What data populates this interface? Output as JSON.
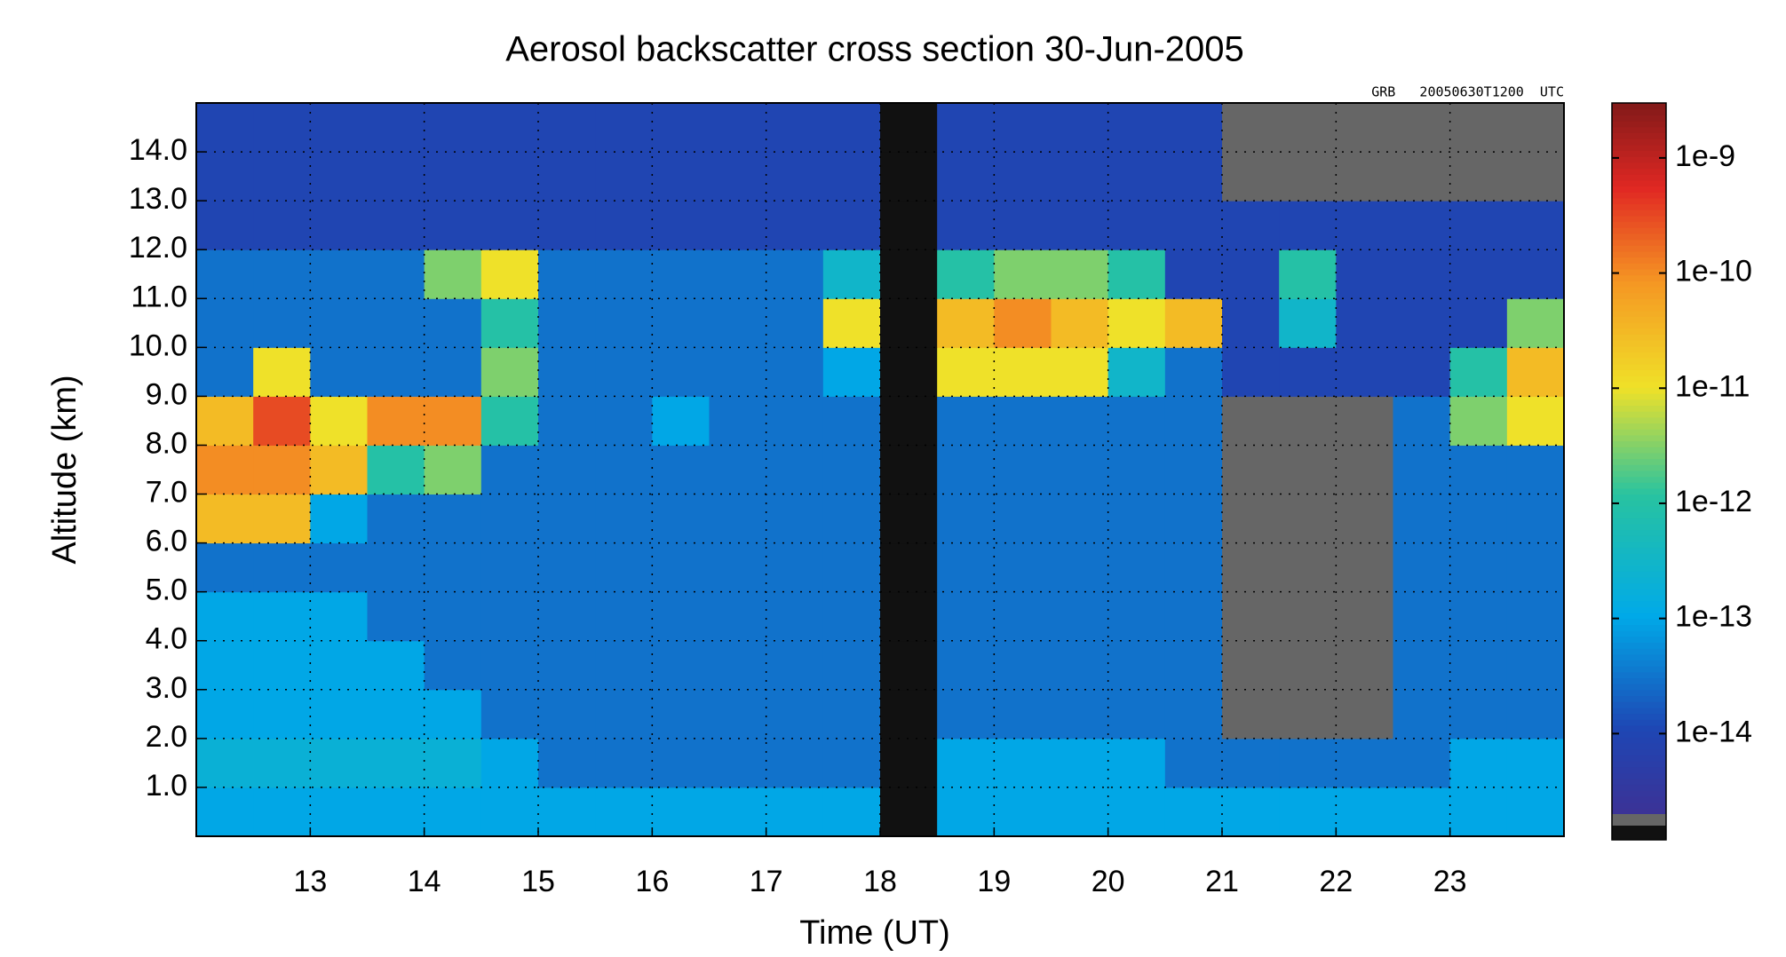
{
  "chart_data": {
    "type": "heatmap",
    "title": "Aerosol backscatter cross section  30-Jun-2005",
    "annotation": "GRB   20050630T1200  UTC",
    "x_label": "Time (UT)",
    "y_label": "Altitude (km)",
    "xlim": [
      12,
      24
    ],
    "ylim": [
      0,
      15
    ],
    "xticks": [
      13,
      14,
      15,
      16,
      17,
      18,
      19,
      20,
      21,
      22,
      23
    ],
    "yticks": [
      {
        "value": 1,
        "label": "1.0"
      },
      {
        "value": 2,
        "label": "2.0"
      },
      {
        "value": 3,
        "label": "3.0"
      },
      {
        "value": 4,
        "label": "4.0"
      },
      {
        "value": 5,
        "label": "5.0"
      },
      {
        "value": 6,
        "label": "6.0"
      },
      {
        "value": 7,
        "label": "7.0"
      },
      {
        "value": 8,
        "label": "8.0"
      },
      {
        "value": 9,
        "label": "9.0"
      },
      {
        "value": 10,
        "label": "10.0"
      },
      {
        "value": 11,
        "label": "11.0"
      },
      {
        "value": 12,
        "label": "12.0"
      },
      {
        "value": 13,
        "label": "13.0"
      },
      {
        "value": 14,
        "label": "14.0"
      }
    ],
    "grid": true,
    "x_bins": [
      12,
      12.5,
      13,
      13.5,
      14,
      14.5,
      15,
      15.5,
      16,
      16.5,
      17,
      17.5,
      18,
      18.5,
      19,
      19.5,
      20,
      20.5,
      21,
      21.5,
      22,
      22.5,
      23,
      23.5,
      24
    ],
    "y_bins": [
      0,
      1,
      2,
      3,
      4,
      5,
      6,
      7,
      8,
      9,
      10,
      11,
      12,
      13,
      14,
      15
    ],
    "z": [
      [
        1e-13,
        1e-13,
        1e-13,
        1e-13,
        1e-13,
        1e-13,
        1e-13,
        1e-13,
        1e-13,
        1e-13,
        1e-13,
        1e-13,
        null,
        1e-13,
        1e-13,
        1e-13,
        1e-13,
        1e-13,
        1e-13,
        1e-13,
        1e-13,
        1e-13,
        1e-13,
        1e-13
      ],
      [
        2e-13,
        2e-13,
        2e-13,
        2e-13,
        2e-13,
        1e-13,
        3e-14,
        3e-14,
        3e-14,
        3e-14,
        3e-14,
        3e-14,
        null,
        1e-13,
        1e-13,
        1e-13,
        1e-13,
        3e-14,
        3e-14,
        3e-14,
        3e-14,
        3e-14,
        1e-13,
        1e-13
      ],
      [
        1e-13,
        1e-13,
        1e-13,
        1e-13,
        1e-13,
        3e-14,
        3e-14,
        3e-14,
        3e-14,
        3e-14,
        3e-14,
        3e-14,
        null,
        3e-14,
        3e-14,
        3e-14,
        3e-14,
        3e-14,
        1e-15,
        1e-15,
        1e-15,
        3e-14,
        3e-14,
        3e-14
      ],
      [
        1e-13,
        1e-13,
        1e-13,
        1e-13,
        3e-14,
        3e-14,
        3e-14,
        3e-14,
        3e-14,
        3e-14,
        3e-14,
        3e-14,
        null,
        3e-14,
        3e-14,
        3e-14,
        3e-14,
        3e-14,
        1e-15,
        1e-15,
        1e-15,
        3e-14,
        3e-14,
        3e-14
      ],
      [
        1e-13,
        1e-13,
        1e-13,
        3e-14,
        3e-14,
        3e-14,
        3e-14,
        3e-14,
        3e-14,
        3e-14,
        3e-14,
        3e-14,
        null,
        3e-14,
        3e-14,
        3e-14,
        3e-14,
        3e-14,
        1e-15,
        1e-15,
        1e-15,
        3e-14,
        3e-14,
        3e-14
      ],
      [
        3e-14,
        3e-14,
        3e-14,
        3e-14,
        3e-14,
        3e-14,
        3e-14,
        3e-14,
        3e-14,
        3e-14,
        3e-14,
        3e-14,
        null,
        3e-14,
        3e-14,
        3e-14,
        3e-14,
        3e-14,
        1e-15,
        1e-15,
        1e-15,
        3e-14,
        3e-14,
        3e-14
      ],
      [
        3e-11,
        3e-11,
        1e-13,
        3e-14,
        3e-14,
        3e-14,
        3e-14,
        3e-14,
        3e-14,
        3e-14,
        3e-14,
        3e-14,
        null,
        3e-14,
        3e-14,
        3e-14,
        3e-14,
        3e-14,
        1e-15,
        1e-15,
        1e-15,
        3e-14,
        3e-14,
        3e-14
      ],
      [
        1e-10,
        1e-10,
        3e-11,
        1e-12,
        3e-12,
        3e-14,
        3e-14,
        3e-14,
        3e-14,
        3e-14,
        3e-14,
        3e-14,
        null,
        3e-14,
        3e-14,
        3e-14,
        3e-14,
        3e-14,
        1e-15,
        1e-15,
        1e-15,
        3e-14,
        3e-14,
        3e-14
      ],
      [
        3e-11,
        3e-10,
        1e-11,
        1e-10,
        1e-10,
        1e-12,
        3e-14,
        3e-14,
        1e-13,
        3e-14,
        3e-14,
        3e-14,
        null,
        3e-14,
        3e-14,
        3e-14,
        3e-14,
        3e-14,
        1e-15,
        1e-15,
        1e-15,
        3e-14,
        3e-12,
        1e-11
      ],
      [
        3e-14,
        1e-11,
        3e-14,
        3e-14,
        3e-14,
        3e-12,
        3e-14,
        3e-14,
        3e-14,
        3e-14,
        3e-14,
        1e-13,
        null,
        1e-11,
        1e-11,
        1e-11,
        3e-13,
        3e-14,
        1e-14,
        1e-14,
        1e-14,
        1e-14,
        1e-12,
        3e-11
      ],
      [
        3e-14,
        3e-14,
        3e-14,
        3e-14,
        3e-14,
        1e-12,
        3e-14,
        3e-14,
        3e-14,
        3e-14,
        3e-14,
        1e-11,
        null,
        3e-11,
        1e-10,
        3e-11,
        1e-11,
        3e-11,
        1e-14,
        3e-13,
        1e-14,
        1e-14,
        1e-14,
        3e-12
      ],
      [
        3e-14,
        3e-14,
        3e-14,
        3e-14,
        3e-12,
        1e-11,
        3e-14,
        3e-14,
        3e-14,
        3e-14,
        3e-14,
        3e-13,
        null,
        1e-12,
        3e-12,
        3e-12,
        1e-12,
        1e-14,
        1e-14,
        1e-12,
        1e-14,
        1e-14,
        1e-14,
        1e-14
      ],
      [
        1e-14,
        1e-14,
        1e-14,
        1e-14,
        1e-14,
        1e-14,
        1e-14,
        1e-14,
        1e-14,
        1e-14,
        1e-14,
        1e-14,
        null,
        1e-14,
        1e-14,
        1e-14,
        1e-14,
        1e-14,
        1e-14,
        1e-14,
        1e-14,
        1e-14,
        1e-14,
        1e-14
      ],
      [
        1e-14,
        1e-14,
        1e-14,
        1e-14,
        1e-14,
        1e-14,
        1e-14,
        1e-14,
        1e-14,
        1e-14,
        1e-14,
        1e-14,
        null,
        1e-14,
        1e-14,
        1e-14,
        1e-14,
        1e-14,
        1e-15,
        1e-15,
        1e-15,
        1e-15,
        1e-15,
        1e-15
      ],
      [
        1e-14,
        1e-14,
        1e-14,
        1e-14,
        1e-14,
        1e-14,
        1e-14,
        1e-14,
        1e-14,
        1e-14,
        1e-14,
        1e-14,
        null,
        1e-14,
        1e-14,
        1e-14,
        1e-14,
        1e-14,
        1e-15,
        1e-15,
        1e-15,
        1e-15,
        1e-15,
        1e-15
      ]
    ],
    "color_scale": "log",
    "clim": [
      2e-15,
      3e-09
    ],
    "cticks": [
      {
        "value": 1e-09,
        "label": "1e-9"
      },
      {
        "value": 1e-10,
        "label": "1e-10"
      },
      {
        "value": 1e-11,
        "label": "1e-11"
      },
      {
        "value": 1e-12,
        "label": "1e-12"
      },
      {
        "value": 1e-13,
        "label": "1e-13"
      },
      {
        "value": 1e-14,
        "label": "1e-14"
      }
    ]
  }
}
